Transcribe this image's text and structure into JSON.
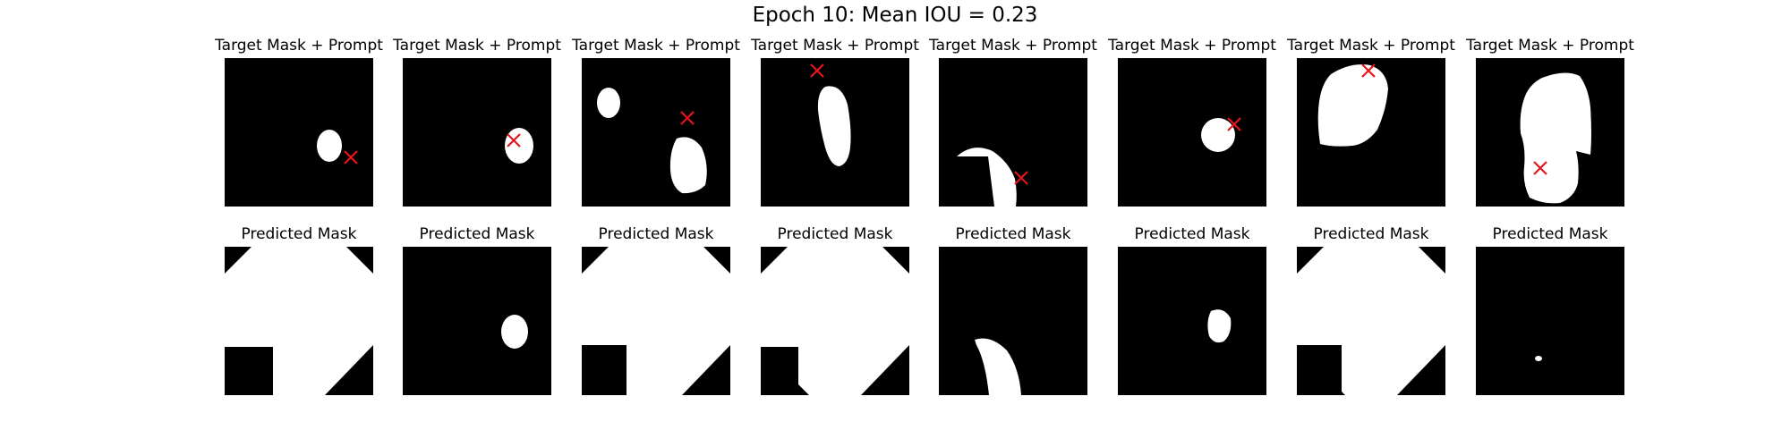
{
  "figure": {
    "title": "Epoch 10: Mean IOU = 0.23",
    "row_titles": [
      "Target Mask + Prompt",
      "Predicted Mask"
    ],
    "mask_background_color": "#000000",
    "mask_foreground_color": "#ffffff",
    "prompt_marker": {
      "shape": "x",
      "color": "#e8141c"
    }
  }
}
